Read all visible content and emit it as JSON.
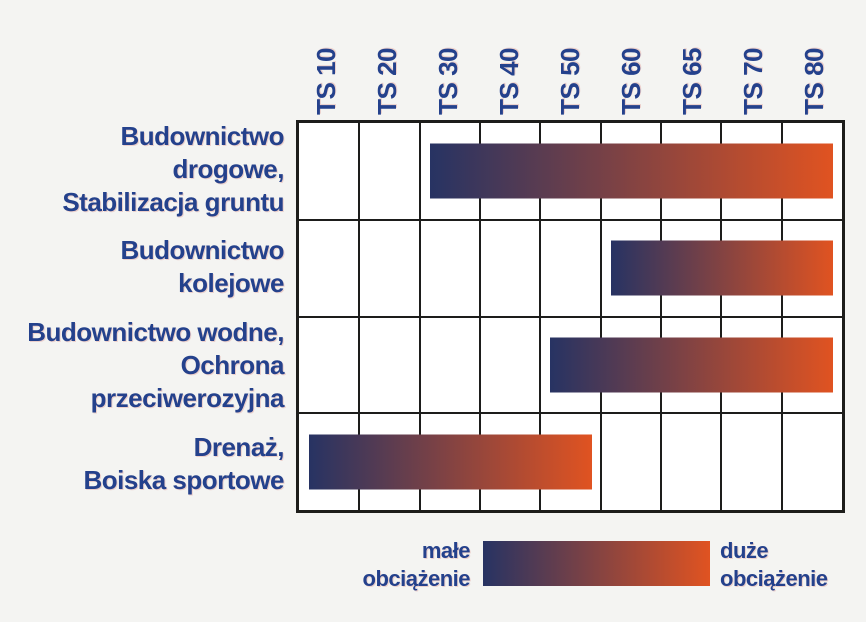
{
  "chart_data": {
    "type": "bar",
    "subtype": "horizontal-range-grid",
    "columns": [
      "TS 10",
      "TS 20",
      "TS 30",
      "TS 40",
      "TS 50",
      "TS 60",
      "TS 65",
      "TS 70",
      "TS 80"
    ],
    "rows": [
      {
        "label_lines": [
          "Budownictwo",
          "drogowe,",
          "Stabilizacja gruntu"
        ],
        "range_start": "TS 30",
        "range_end": "TS 80"
      },
      {
        "label_lines": [
          "Budownictwo",
          "kolejowe"
        ],
        "range_start": "TS 60",
        "range_end": "TS 80"
      },
      {
        "label_lines": [
          "Budownictwo wodne,",
          "Ochrona",
          "przeciwerozyjna"
        ],
        "range_start": "TS 50",
        "range_end": "TS 80"
      },
      {
        "label_lines": [
          "Drenaż,",
          "Boiska sportowe"
        ],
        "range_start": "TS 10",
        "range_end": "TS 50"
      }
    ],
    "legend": {
      "left_line1": "małe",
      "left_line2": "obciążenie",
      "right_line1": "duże",
      "right_line2": "obciążenie"
    },
    "colors": {
      "gradient_start": "#273363",
      "gradient_end": "#e05321",
      "text_navy": "#24418c",
      "grid_line": "#1d1d1b",
      "cell_bg": "#ffffff",
      "page_bg": "#f4f4f2"
    },
    "layout": {
      "n_columns": 9,
      "n_rows": 4,
      "grid_on": true,
      "legend_position": "bottom-center"
    }
  }
}
